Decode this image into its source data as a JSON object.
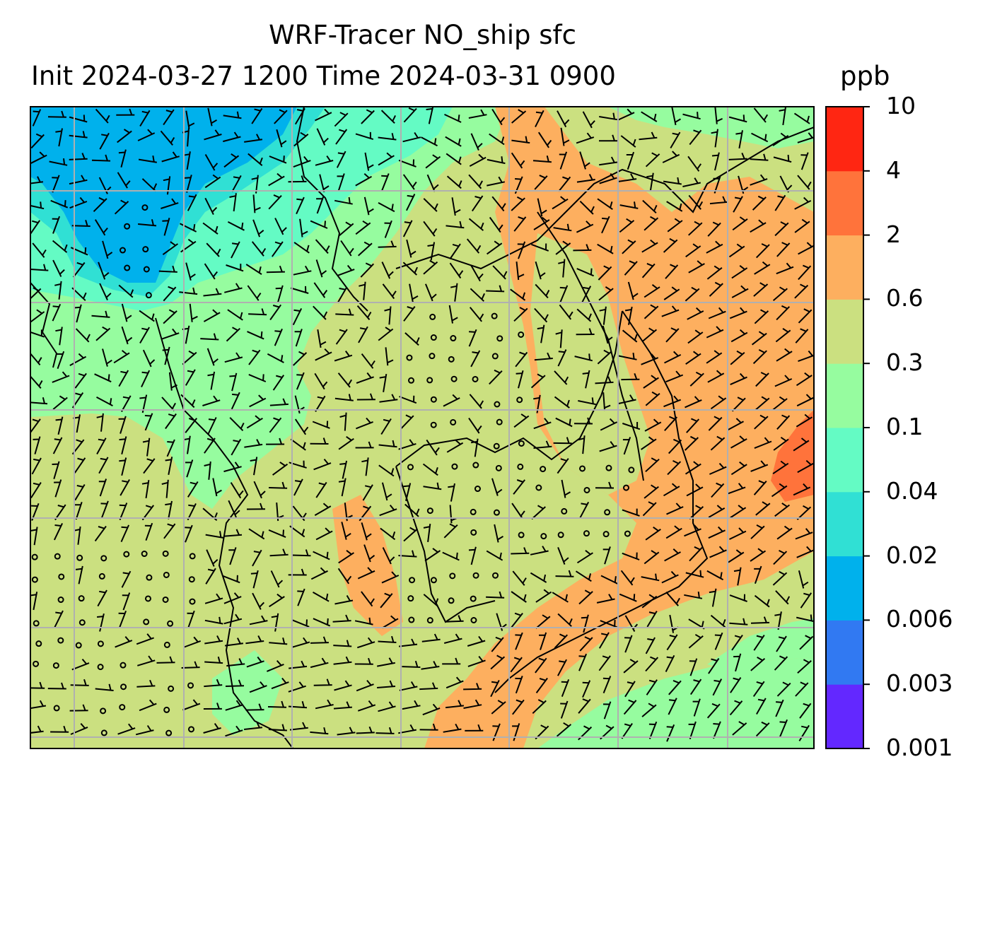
{
  "title": {
    "line1": "WRF-Tracer NO_ship sfc",
    "line2": "Init 2024-03-27 1200 Time 2024-03-31 0900",
    "units": "ppb"
  },
  "colorbar": {
    "levels": [
      "0.001",
      "0.003",
      "0.006",
      "0.02",
      "0.04",
      "0.1",
      "0.3",
      "0.6",
      "2",
      "4",
      "10"
    ],
    "colors": [
      "#6328ff",
      "#3179f2",
      "#00b1ec",
      "#30e0d4",
      "#64fbc4",
      "#96fc9f",
      "#cbe080",
      "#fdaf5f",
      "#ff733b",
      "#ff2612"
    ]
  },
  "map": {
    "gridline_color": "#b0b0b0",
    "coastline_color": "#000000",
    "barb_color": "#000000"
  }
}
